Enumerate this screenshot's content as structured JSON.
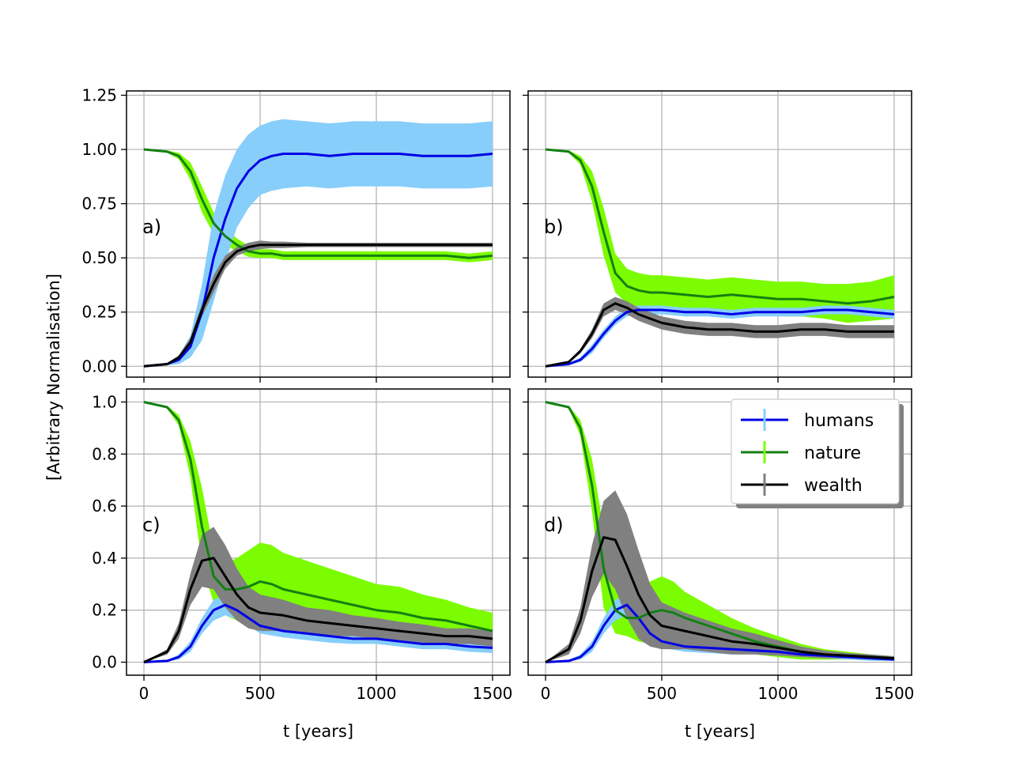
{
  "chart_data": {
    "type": "line",
    "ylabel": "[Arbitrary Normalisation]",
    "xlabel": "t [years]",
    "xlim": [
      -75,
      1575
    ],
    "xticks": [
      0,
      500,
      1000,
      1500
    ],
    "xtick_labels": [
      "0",
      "500",
      "1000",
      "1500"
    ],
    "grid": true,
    "legend": {
      "location": "top-right of panel d",
      "entries": [
        {
          "key": "humans",
          "label": "humans",
          "line_color": "#0000e6",
          "band_color": "#87cefa"
        },
        {
          "key": "nature",
          "label": "nature",
          "line_color": "#138013",
          "band_color": "#7cfc00"
        },
        {
          "key": "wealth",
          "label": "wealth",
          "line_color": "#000000",
          "band_color": "#808080"
        }
      ]
    },
    "panels": [
      {
        "id": "a",
        "label": "a)",
        "ylim": [
          -0.05,
          1.27
        ],
        "yticks": [
          0,
          0.25,
          0.5,
          0.75,
          1.0,
          1.25
        ],
        "ytick_labels": [
          "0.00",
          "0.25",
          "0.50",
          "0.75",
          "1.00",
          "1.25"
        ],
        "show_xtick_labels": false,
        "series": [
          {
            "key": "humans",
            "x": [
              0,
              100,
              150,
              200,
              250,
              300,
              350,
              400,
              450,
              500,
              550,
              600,
              700,
              800,
              900,
              1000,
              1100,
              1200,
              1300,
              1400,
              1500
            ],
            "y": [
              0,
              0.01,
              0.03,
              0.09,
              0.25,
              0.5,
              0.68,
              0.82,
              0.9,
              0.95,
              0.97,
              0.98,
              0.98,
              0.97,
              0.98,
              0.98,
              0.98,
              0.97,
              0.97,
              0.97,
              0.98
            ],
            "err": [
              0,
              0.005,
              0.02,
              0.05,
              0.13,
              0.2,
              0.2,
              0.18,
              0.17,
              0.16,
              0.16,
              0.16,
              0.15,
              0.15,
              0.15,
              0.15,
              0.15,
              0.15,
              0.15,
              0.15,
              0.15
            ]
          },
          {
            "key": "nature",
            "x": [
              0,
              100,
              150,
              200,
              250,
              300,
              350,
              400,
              450,
              500,
              550,
              600,
              700,
              800,
              900,
              1000,
              1100,
              1200,
              1300,
              1400,
              1500
            ],
            "y": [
              1.0,
              0.99,
              0.97,
              0.9,
              0.77,
              0.66,
              0.6,
              0.56,
              0.53,
              0.52,
              0.52,
              0.51,
              0.51,
              0.51,
              0.51,
              0.51,
              0.51,
              0.51,
              0.51,
              0.5,
              0.51
            ],
            "err": [
              0,
              0.005,
              0.015,
              0.04,
              0.06,
              0.05,
              0.04,
              0.03,
              0.025,
              0.02,
              0.02,
              0.02,
              0.02,
              0.02,
              0.02,
              0.02,
              0.02,
              0.02,
              0.02,
              0.02,
              0.02
            ]
          },
          {
            "key": "wealth",
            "x": [
              0,
              100,
              150,
              200,
              250,
              300,
              350,
              400,
              450,
              500,
              550,
              600,
              700,
              800,
              900,
              1000,
              1100,
              1200,
              1300,
              1400,
              1500
            ],
            "y": [
              0,
              0.01,
              0.04,
              0.11,
              0.26,
              0.38,
              0.48,
              0.53,
              0.55,
              0.56,
              0.56,
              0.56,
              0.56,
              0.56,
              0.56,
              0.56,
              0.56,
              0.56,
              0.56,
              0.56,
              0.56
            ],
            "err": [
              0,
              0.005,
              0.01,
              0.02,
              0.03,
              0.04,
              0.03,
              0.02,
              0.02,
              0.02,
              0.015,
              0.015,
              0.01,
              0.01,
              0.01,
              0.01,
              0.01,
              0.01,
              0.01,
              0.01,
              0.01
            ]
          }
        ]
      },
      {
        "id": "b",
        "label": "b)",
        "ylim": [
          -0.05,
          1.27
        ],
        "yticks": [
          0,
          0.25,
          0.5,
          0.75,
          1.0,
          1.25
        ],
        "ytick_labels": [],
        "show_xtick_labels": false,
        "series": [
          {
            "key": "humans",
            "x": [
              0,
              100,
              150,
              200,
              250,
              300,
              350,
              400,
              450,
              500,
              600,
              700,
              800,
              900,
              1000,
              1100,
              1200,
              1300,
              1400,
              1500
            ],
            "y": [
              0,
              0.01,
              0.03,
              0.08,
              0.15,
              0.21,
              0.25,
              0.26,
              0.26,
              0.26,
              0.25,
              0.25,
              0.24,
              0.25,
              0.25,
              0.25,
              0.26,
              0.26,
              0.25,
              0.24
            ],
            "err": [
              0,
              0.005,
              0.01,
              0.02,
              0.02,
              0.02,
              0.02,
              0.02,
              0.02,
              0.02,
              0.02,
              0.02,
              0.02,
              0.02,
              0.02,
              0.02,
              0.02,
              0.02,
              0.02,
              0.02
            ]
          },
          {
            "key": "nature",
            "x": [
              0,
              100,
              150,
              200,
              250,
              300,
              350,
              400,
              450,
              500,
              600,
              700,
              800,
              900,
              1000,
              1100,
              1200,
              1300,
              1400,
              1500
            ],
            "y": [
              1.0,
              0.99,
              0.95,
              0.83,
              0.62,
              0.43,
              0.37,
              0.35,
              0.34,
              0.34,
              0.33,
              0.32,
              0.33,
              0.32,
              0.31,
              0.31,
              0.3,
              0.29,
              0.3,
              0.32
            ],
            "err": [
              0,
              0.005,
              0.02,
              0.07,
              0.11,
              0.09,
              0.08,
              0.08,
              0.08,
              0.08,
              0.08,
              0.08,
              0.08,
              0.08,
              0.08,
              0.08,
              0.08,
              0.09,
              0.09,
              0.1
            ]
          },
          {
            "key": "wealth",
            "x": [
              0,
              100,
              150,
              200,
              250,
              300,
              350,
              400,
              450,
              500,
              600,
              700,
              800,
              900,
              1000,
              1100,
              1200,
              1300,
              1400,
              1500
            ],
            "y": [
              0,
              0.02,
              0.07,
              0.15,
              0.26,
              0.29,
              0.27,
              0.24,
              0.22,
              0.2,
              0.18,
              0.17,
              0.17,
              0.16,
              0.16,
              0.17,
              0.17,
              0.16,
              0.16,
              0.16
            ],
            "err": [
              0,
              0.005,
              0.01,
              0.02,
              0.03,
              0.03,
              0.03,
              0.03,
              0.03,
              0.03,
              0.03,
              0.03,
              0.03,
              0.03,
              0.03,
              0.03,
              0.03,
              0.03,
              0.03,
              0.03
            ]
          }
        ]
      },
      {
        "id": "c",
        "label": "c)",
        "ylim": [
          -0.05,
          1.05
        ],
        "yticks": [
          0,
          0.2,
          0.4,
          0.6,
          0.8,
          1.0
        ],
        "ytick_labels": [
          "0.0",
          "0.2",
          "0.4",
          "0.6",
          "0.8",
          "1.0"
        ],
        "show_xtick_labels": true,
        "series": [
          {
            "key": "humans",
            "x": [
              0,
              100,
              150,
              200,
              250,
              300,
              350,
              400,
              450,
              500,
              600,
              700,
              800,
              900,
              1000,
              1100,
              1200,
              1300,
              1400,
              1500
            ],
            "y": [
              0,
              0.005,
              0.02,
              0.06,
              0.14,
              0.2,
              0.22,
              0.2,
              0.17,
              0.14,
              0.12,
              0.11,
              0.1,
              0.09,
              0.09,
              0.08,
              0.07,
              0.07,
              0.06,
              0.055
            ],
            "err": [
              0,
              0.003,
              0.01,
              0.02,
              0.03,
              0.04,
              0.04,
              0.035,
              0.03,
              0.03,
              0.025,
              0.025,
              0.025,
              0.02,
              0.02,
              0.02,
              0.02,
              0.02,
              0.02,
              0.02
            ]
          },
          {
            "key": "nature",
            "x": [
              0,
              100,
              150,
              200,
              250,
              300,
              350,
              400,
              450,
              500,
              550,
              600,
              700,
              800,
              900,
              1000,
              1100,
              1200,
              1300,
              1400,
              1500
            ],
            "y": [
              1.0,
              0.98,
              0.93,
              0.78,
              0.52,
              0.33,
              0.28,
              0.28,
              0.29,
              0.31,
              0.3,
              0.28,
              0.26,
              0.24,
              0.22,
              0.2,
              0.19,
              0.17,
              0.16,
              0.14,
              0.12
            ],
            "err": [
              0,
              0.005,
              0.02,
              0.07,
              0.15,
              0.1,
              0.1,
              0.12,
              0.14,
              0.15,
              0.15,
              0.14,
              0.13,
              0.12,
              0.11,
              0.1,
              0.1,
              0.09,
              0.08,
              0.07,
              0.07
            ]
          },
          {
            "key": "wealth",
            "x": [
              0,
              100,
              150,
              200,
              250,
              300,
              350,
              400,
              450,
              500,
              600,
              700,
              800,
              900,
              1000,
              1100,
              1200,
              1300,
              1400,
              1500
            ],
            "y": [
              0,
              0.04,
              0.12,
              0.28,
              0.39,
              0.4,
              0.33,
              0.26,
              0.21,
              0.19,
              0.18,
              0.16,
              0.15,
              0.14,
              0.13,
              0.12,
              0.11,
              0.1,
              0.1,
              0.09
            ],
            "err": [
              0,
              0.01,
              0.03,
              0.06,
              0.1,
              0.12,
              0.12,
              0.1,
              0.08,
              0.07,
              0.06,
              0.05,
              0.05,
              0.04,
              0.04,
              0.035,
              0.035,
              0.03,
              0.03,
              0.03
            ]
          }
        ]
      },
      {
        "id": "d",
        "label": "d)",
        "ylim": [
          -0.05,
          1.05
        ],
        "yticks": [
          0,
          0.2,
          0.4,
          0.6,
          0.8,
          1.0
        ],
        "ytick_labels": [],
        "show_xtick_labels": true,
        "series": [
          {
            "key": "humans",
            "x": [
              0,
              100,
              150,
              200,
              250,
              300,
              350,
              400,
              450,
              500,
              600,
              700,
              800,
              900,
              1000,
              1100,
              1200,
              1300,
              1400,
              1500
            ],
            "y": [
              0,
              0.005,
              0.02,
              0.06,
              0.14,
              0.2,
              0.22,
              0.17,
              0.11,
              0.08,
              0.06,
              0.055,
              0.05,
              0.045,
              0.04,
              0.03,
              0.025,
              0.02,
              0.015,
              0.01
            ],
            "err": [
              0,
              0.003,
              0.01,
              0.02,
              0.03,
              0.04,
              0.04,
              0.04,
              0.03,
              0.025,
              0.02,
              0.02,
              0.02,
              0.015,
              0.015,
              0.01,
              0.01,
              0.01,
              0.01,
              0.005
            ]
          },
          {
            "key": "nature",
            "x": [
              0,
              100,
              150,
              200,
              250,
              300,
              350,
              400,
              450,
              500,
              550,
              600,
              700,
              800,
              900,
              1000,
              1100,
              1200,
              1300,
              1400,
              1500
            ],
            "y": [
              1.0,
              0.98,
              0.9,
              0.68,
              0.36,
              0.2,
              0.17,
              0.17,
              0.19,
              0.2,
              0.19,
              0.17,
              0.14,
              0.11,
              0.08,
              0.06,
              0.04,
              0.03,
              0.025,
              0.02,
              0.015
            ],
            "err": [
              0,
              0.005,
              0.03,
              0.1,
              0.15,
              0.09,
              0.07,
              0.09,
              0.12,
              0.13,
              0.12,
              0.1,
              0.08,
              0.06,
              0.05,
              0.04,
              0.03,
              0.02,
              0.015,
              0.01,
              0.008
            ]
          },
          {
            "key": "wealth",
            "x": [
              0,
              100,
              150,
              200,
              250,
              300,
              350,
              400,
              450,
              500,
              600,
              700,
              800,
              900,
              1000,
              1100,
              1200,
              1300,
              1400,
              1500
            ],
            "y": [
              0,
              0.05,
              0.16,
              0.35,
              0.48,
              0.47,
              0.37,
              0.26,
              0.18,
              0.14,
              0.12,
              0.1,
              0.08,
              0.07,
              0.055,
              0.04,
              0.03,
              0.025,
              0.02,
              0.015
            ],
            "err": [
              0,
              0.02,
              0.05,
              0.1,
              0.14,
              0.19,
              0.2,
              0.17,
              0.12,
              0.09,
              0.07,
              0.06,
              0.05,
              0.04,
              0.03,
              0.02,
              0.015,
              0.01,
              0.01,
              0.008
            ]
          }
        ]
      }
    ]
  }
}
